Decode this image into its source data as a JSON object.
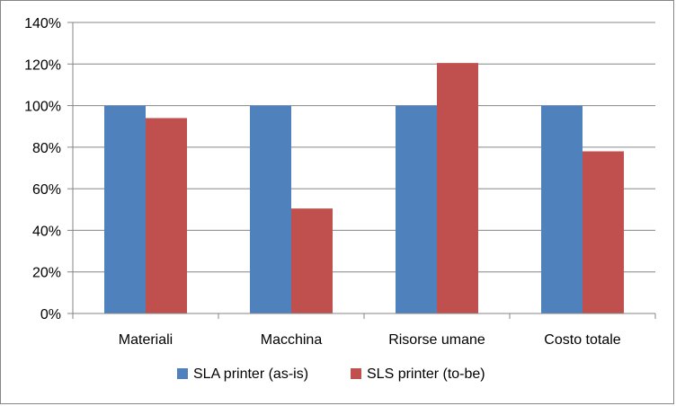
{
  "chart_data": {
    "type": "bar",
    "title": "",
    "xlabel": "",
    "ylabel": "",
    "categories": [
      "Materiali",
      "Macchina",
      "Risorse umane",
      "Costo totale"
    ],
    "series": [
      {
        "name": "SLA printer (as-is)",
        "color": "#4F81BD",
        "values": [
          100,
          100,
          100,
          100
        ]
      },
      {
        "name": "SLS printer (to-be)",
        "color": "#C0504D",
        "values": [
          94,
          50.5,
          120.5,
          78
        ]
      }
    ],
    "ylim": [
      0,
      140
    ],
    "y_ticks": [
      0,
      20,
      40,
      60,
      80,
      100,
      120,
      140
    ],
    "y_tick_format": "percent",
    "grid": true,
    "legend_position": "bottom"
  }
}
